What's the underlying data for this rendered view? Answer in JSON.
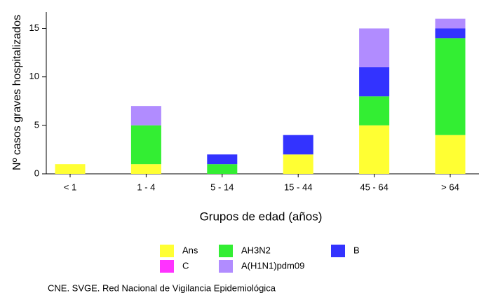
{
  "chart_data": {
    "type": "stacked-bar",
    "categories": [
      "< 1",
      "1 - 4",
      "5 - 14",
      "15 - 44",
      "45 - 64",
      "> 64"
    ],
    "series": [
      {
        "name": "Ans",
        "color": "#ffff33",
        "values": [
          1,
          1,
          0,
          2,
          5,
          4
        ]
      },
      {
        "name": "AH3N2",
        "color": "#33ee33",
        "values": [
          0,
          4,
          1,
          0,
          3,
          10
        ]
      },
      {
        "name": "B",
        "color": "#3333ff",
        "values": [
          0,
          0,
          1,
          2,
          3,
          1
        ]
      },
      {
        "name": "C",
        "color": "#ff33ff",
        "values": [
          0,
          0,
          0,
          0,
          0,
          0
        ]
      },
      {
        "name": "A(H1N1)pdm09",
        "color": "#b18cff",
        "values": [
          0,
          2,
          0,
          0,
          4,
          1
        ]
      }
    ],
    "stack_order": [
      0,
      1,
      2,
      3,
      4
    ],
    "ylabel": "Nº casos graves hospitalizados",
    "xlabel": "Grupos de edad (años)",
    "note": "CNE. SVGE. Red Nacional de Vigilancia Epidemiológica",
    "ylim": [
      0,
      16.7
    ],
    "yticks": [
      0,
      5,
      10,
      15
    ]
  }
}
